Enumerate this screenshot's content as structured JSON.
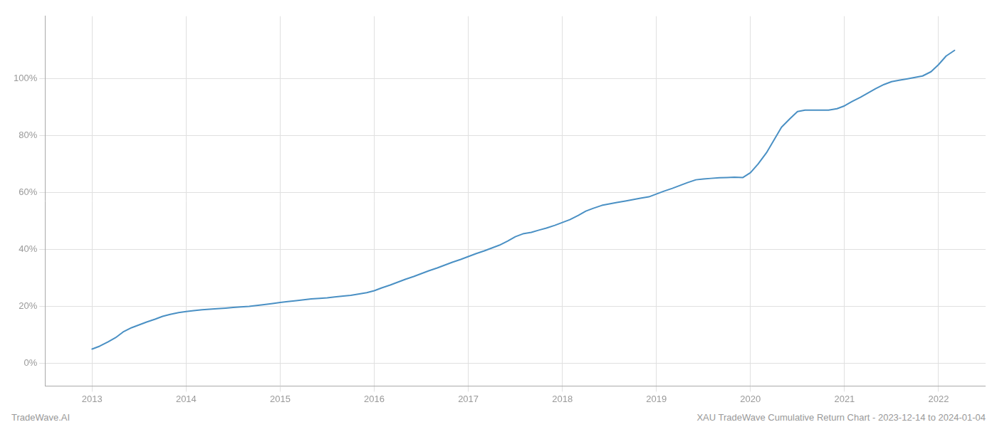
{
  "chart_data": {
    "type": "line",
    "annotations": [
      "TradeWave.AI",
      "XAU TradeWave Cumulative Return Chart - 2023-12-14 to 2024-01-04"
    ],
    "color": "#4a90c4",
    "grid": true,
    "xlim": [
      2012.5,
      2022.5
    ],
    "xticks": [
      2013,
      2014,
      2015,
      2016,
      2017,
      2018,
      2019,
      2020,
      2021,
      2022
    ],
    "ylim": [
      -8,
      122
    ],
    "yticks": [
      {
        "value": 0,
        "label": "0%"
      },
      {
        "value": 20,
        "label": "20%"
      },
      {
        "value": 40,
        "label": "40%"
      },
      {
        "value": 60,
        "label": "60%"
      },
      {
        "value": 80,
        "label": "80%"
      },
      {
        "value": 100,
        "label": "100%"
      }
    ],
    "x": [
      2013.0,
      2013.08,
      2013.17,
      2013.25,
      2013.33,
      2013.42,
      2013.5,
      2013.58,
      2013.67,
      2013.75,
      2013.83,
      2013.92,
      2014.0,
      2014.08,
      2014.17,
      2014.25,
      2014.33,
      2014.42,
      2014.5,
      2014.58,
      2014.67,
      2014.75,
      2014.83,
      2014.92,
      2015.0,
      2015.08,
      2015.17,
      2015.25,
      2015.33,
      2015.42,
      2015.5,
      2015.58,
      2015.67,
      2015.75,
      2015.83,
      2015.92,
      2016.0,
      2016.08,
      2016.17,
      2016.25,
      2016.33,
      2016.42,
      2016.5,
      2016.58,
      2016.67,
      2016.75,
      2016.83,
      2016.92,
      2017.0,
      2017.08,
      2017.17,
      2017.25,
      2017.33,
      2017.42,
      2017.5,
      2017.58,
      2017.67,
      2017.75,
      2017.83,
      2017.92,
      2018.0,
      2018.08,
      2018.17,
      2018.25,
      2018.33,
      2018.42,
      2018.5,
      2018.58,
      2018.67,
      2018.75,
      2018.83,
      2018.92,
      2019.0,
      2019.08,
      2019.17,
      2019.25,
      2019.33,
      2019.42,
      2019.5,
      2019.58,
      2019.67,
      2019.75,
      2019.83,
      2019.92,
      2020.0,
      2020.08,
      2020.17,
      2020.25,
      2020.33,
      2020.42,
      2020.5,
      2020.58,
      2020.67,
      2020.75,
      2020.83,
      2020.92,
      2021.0,
      2021.08,
      2021.17,
      2021.25,
      2021.33,
      2021.42,
      2021.5,
      2021.58,
      2021.67,
      2021.75,
      2021.83,
      2021.92,
      2022.0,
      2022.08,
      2022.17
    ],
    "values": [
      5.0,
      6.0,
      7.5,
      9.0,
      11.0,
      12.5,
      13.5,
      14.5,
      15.5,
      16.5,
      17.2,
      17.8,
      18.2,
      18.5,
      18.8,
      19.0,
      19.2,
      19.4,
      19.6,
      19.8,
      20.0,
      20.3,
      20.6,
      21.0,
      21.4,
      21.7,
      22.0,
      22.3,
      22.6,
      22.8,
      23.0,
      23.3,
      23.6,
      23.9,
      24.3,
      24.8,
      25.5,
      26.5,
      27.5,
      28.5,
      29.5,
      30.5,
      31.5,
      32.5,
      33.5,
      34.5,
      35.5,
      36.5,
      37.5,
      38.5,
      39.5,
      40.5,
      41.5,
      43.0,
      44.5,
      45.5,
      46.0,
      46.8,
      47.5,
      48.5,
      49.5,
      50.5,
      52.0,
      53.5,
      54.5,
      55.5,
      56.0,
      56.5,
      57.0,
      57.5,
      58.0,
      58.5,
      59.5,
      60.5,
      61.5,
      62.5,
      63.5,
      64.5,
      64.8,
      65.0,
      65.2,
      65.3,
      65.4,
      65.3,
      67.0,
      70.0,
      74.0,
      78.5,
      83.0,
      86.0,
      88.5,
      89.0,
      89.0,
      89.0,
      89.0,
      89.5,
      90.5,
      92.0,
      93.5,
      95.0,
      96.5,
      98.0,
      99.0,
      99.5,
      100.0,
      100.5,
      101.0,
      102.5,
      105.0,
      108.0,
      110.0
    ]
  }
}
